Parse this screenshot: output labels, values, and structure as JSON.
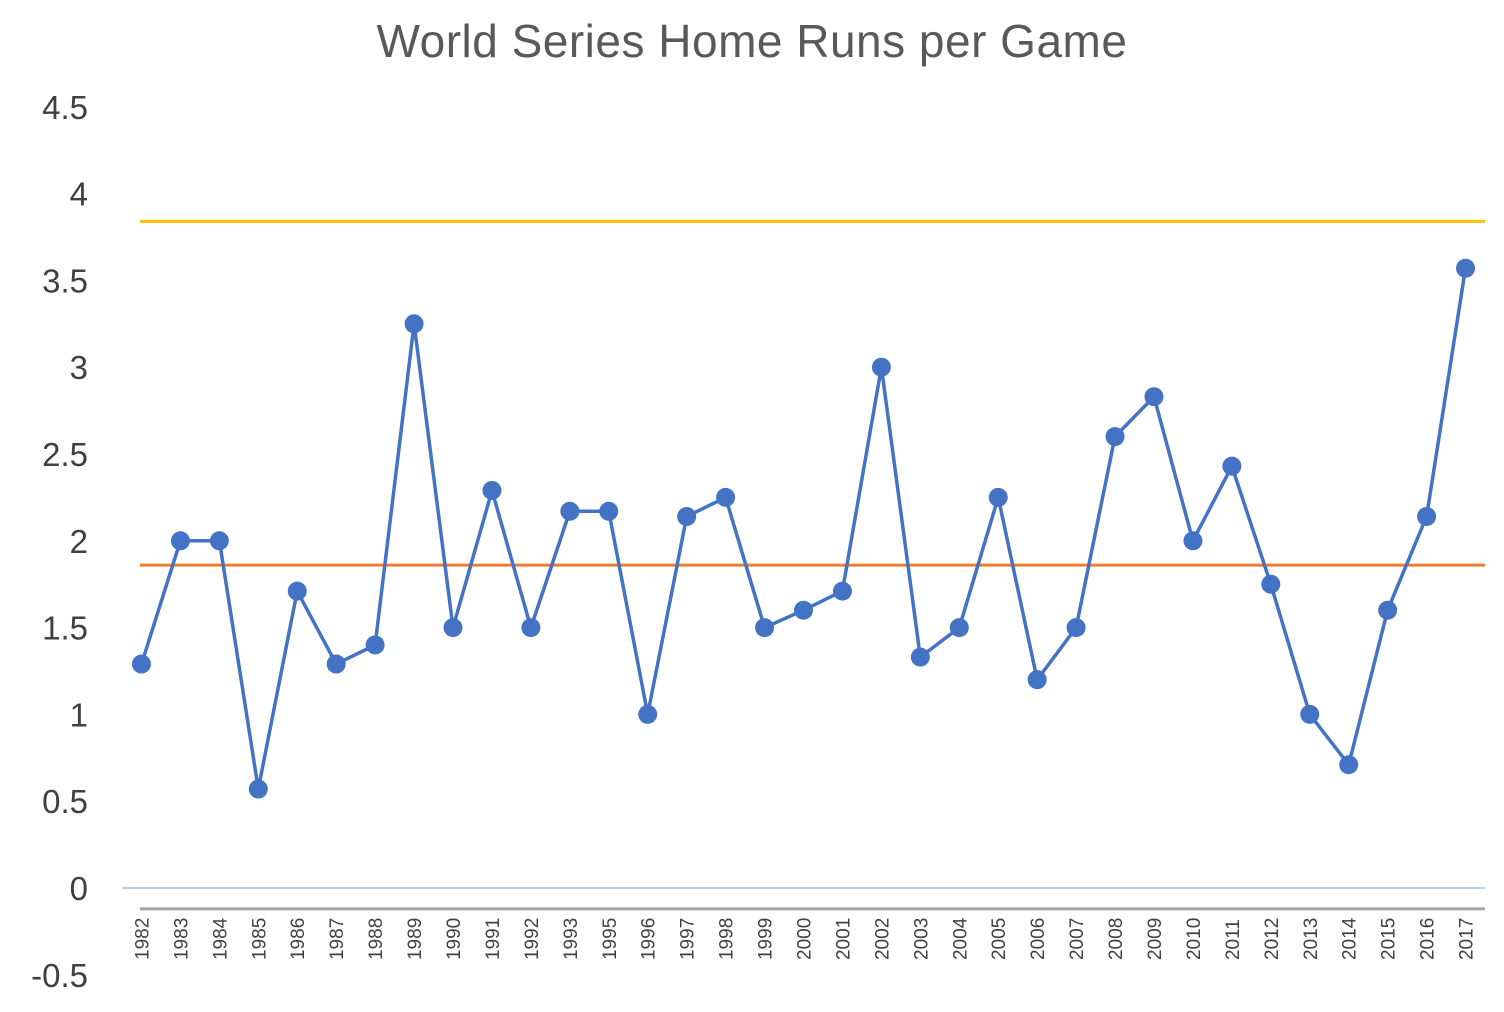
{
  "chart_data": {
    "type": "line",
    "title": "World Series Home Runs per Game",
    "xlabel": "",
    "ylabel": "",
    "ylim": [
      -0.5,
      4.5
    ],
    "yticks": [
      "4.5",
      "4",
      "3.5",
      "3",
      "2.5",
      "2",
      "1.5",
      "1",
      "0.5",
      "0",
      "-0.5"
    ],
    "grid": false,
    "legend": "none",
    "categories": [
      "1982",
      "1983",
      "1984",
      "1985",
      "1986",
      "1987",
      "1988",
      "1989",
      "1990",
      "1991",
      "1992",
      "1993",
      "1995",
      "1996",
      "1997",
      "1998",
      "1999",
      "2000",
      "2001",
      "2002",
      "2003",
      "2004",
      "2005",
      "2006",
      "2007",
      "2008",
      "2009",
      "2010",
      "2011",
      "2012",
      "2013",
      "2014",
      "2015",
      "2016",
      "2017"
    ],
    "series": [
      {
        "values": [
          1.29,
          2.0,
          2.0,
          0.57,
          1.71,
          1.29,
          1.4,
          3.25,
          1.5,
          2.29,
          1.5,
          2.17,
          2.17,
          1.0,
          2.14,
          2.25,
          1.5,
          1.6,
          1.71,
          3.0,
          1.33,
          1.5,
          2.25,
          1.2,
          1.5,
          2.6,
          2.83,
          2.0,
          2.43,
          1.75,
          1.0,
          0.71,
          1.6,
          2.14,
          3.57
        ],
        "color": "#4472C4",
        "marker": "circle"
      }
    ],
    "reference_lines": [
      {
        "value": 3.84,
        "color": "#FFC000"
      },
      {
        "value": 1.86,
        "color": "#ED7D31"
      },
      {
        "value": -0.12,
        "color": "#A5A5A5"
      }
    ],
    "zero_axis_color": "#BFD1EA"
  }
}
